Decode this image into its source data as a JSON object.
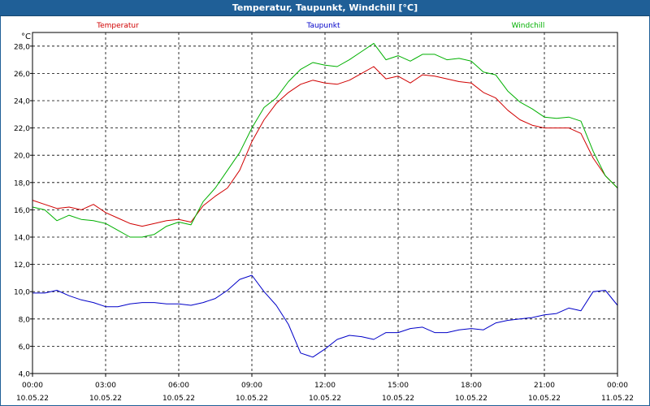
{
  "window": {
    "title": "Temperatur, Taupunkt, Windchill [°C]"
  },
  "colors": {
    "titlebar": "#1f5f97",
    "temperatur": "#d00000",
    "taupunkt": "#0000c8",
    "windchill": "#00b000"
  },
  "chart_data": {
    "type": "line",
    "title": "Temperatur, Taupunkt, Windchill [°C]",
    "ylabel": "°C",
    "ylim": [
      4.0,
      29.0
    ],
    "y_ticks": [
      "4,0",
      "6,0",
      "8,0",
      "10,0",
      "12,0",
      "14,0",
      "16,0",
      "18,0",
      "20,0",
      "22,0",
      "24,0",
      "26,0",
      "28,0"
    ],
    "y_tick_values": [
      4,
      6,
      8,
      10,
      12,
      14,
      16,
      18,
      20,
      22,
      24,
      26,
      28
    ],
    "xlim": [
      0,
      24
    ],
    "x_tick_hours": [
      0,
      3,
      6,
      9,
      12,
      15,
      18,
      21,
      24
    ],
    "x_ticks_time": [
      "00:00",
      "03:00",
      "06:00",
      "09:00",
      "12:00",
      "15:00",
      "18:00",
      "21:00",
      "00:00"
    ],
    "x_ticks_date": [
      "10.05.22",
      "10.05.22",
      "10.05.22",
      "10.05.22",
      "10.05.22",
      "10.05.22",
      "10.05.22",
      "10.05.22",
      "11.05.22"
    ],
    "grid": true,
    "legend_position": "top",
    "series": [
      {
        "name": "Temperatur",
        "color": "#d00000",
        "x": [
          0,
          0.5,
          1,
          1.5,
          2,
          2.5,
          3,
          3.5,
          4,
          4.5,
          5,
          5.5,
          6,
          6.5,
          7,
          7.5,
          8,
          8.5,
          9,
          9.5,
          10,
          10.5,
          11,
          11.5,
          12,
          12.5,
          13,
          13.5,
          14,
          14.5,
          15,
          15.5,
          16,
          16.5,
          17,
          17.5,
          18,
          18.5,
          19,
          19.5,
          20,
          20.5,
          21,
          21.5,
          22,
          22.5,
          23,
          23.5,
          24
        ],
        "y": [
          16.7,
          16.4,
          16.1,
          16.2,
          16.0,
          16.4,
          15.8,
          15.4,
          15.0,
          14.8,
          15.0,
          15.2,
          15.3,
          15.1,
          16.3,
          17.0,
          17.6,
          18.9,
          21.0,
          22.6,
          23.8,
          24.6,
          25.2,
          25.5,
          25.3,
          25.2,
          25.5,
          26.0,
          26.5,
          25.6,
          25.8,
          25.3,
          25.9,
          25.8,
          25.6,
          25.4,
          25.3,
          24.6,
          24.2,
          23.3,
          22.6,
          22.2,
          22.0,
          22.0,
          22.0,
          21.6,
          19.8,
          18.5,
          17.6
        ]
      },
      {
        "name": "Taupunkt",
        "color": "#0000c8",
        "x": [
          0,
          0.5,
          1,
          1.5,
          2,
          2.5,
          3,
          3.5,
          4,
          4.5,
          5,
          5.5,
          6,
          6.5,
          7,
          7.5,
          8,
          8.5,
          9,
          9.5,
          10,
          10.5,
          11,
          11.5,
          12,
          12.5,
          13,
          13.5,
          14,
          14.5,
          15,
          15.5,
          16,
          16.5,
          17,
          17.5,
          18,
          18.5,
          19,
          19.5,
          20,
          20.5,
          21,
          21.5,
          22,
          22.5,
          23,
          23.5,
          24
        ],
        "y": [
          9.9,
          9.9,
          10.1,
          9.7,
          9.4,
          9.2,
          8.9,
          8.9,
          9.1,
          9.2,
          9.2,
          9.1,
          9.1,
          9.0,
          9.2,
          9.5,
          10.1,
          10.9,
          11.2,
          10.0,
          9.0,
          7.6,
          5.5,
          5.2,
          5.8,
          6.5,
          6.8,
          6.7,
          6.5,
          7.0,
          7.0,
          7.3,
          7.4,
          7.0,
          7.0,
          7.2,
          7.3,
          7.2,
          7.7,
          7.9,
          8.0,
          8.1,
          8.3,
          8.4,
          8.8,
          8.6,
          10.0,
          10.1,
          9.0
        ]
      },
      {
        "name": "Windchill",
        "color": "#00b000",
        "x": [
          0,
          0.5,
          1,
          1.5,
          2,
          2.5,
          3,
          3.5,
          4,
          4.5,
          5,
          5.5,
          6,
          6.5,
          7,
          7.5,
          8,
          8.5,
          9,
          9.5,
          10,
          10.5,
          11,
          11.5,
          12,
          12.5,
          13,
          13.5,
          14,
          14.5,
          15,
          15.5,
          16,
          16.5,
          17,
          17.5,
          18,
          18.5,
          19,
          19.5,
          20,
          20.5,
          21,
          21.5,
          22,
          22.5,
          23,
          23.5,
          24
        ],
        "y": [
          16.2,
          16.0,
          15.2,
          15.6,
          15.3,
          15.2,
          15.0,
          14.5,
          14.0,
          14.0,
          14.2,
          14.8,
          15.1,
          14.9,
          16.6,
          17.6,
          18.9,
          20.2,
          22.0,
          23.5,
          24.2,
          25.4,
          26.3,
          26.8,
          26.6,
          26.5,
          27.0,
          27.6,
          28.2,
          27.0,
          27.3,
          26.9,
          27.4,
          27.4,
          27.0,
          27.1,
          26.9,
          26.1,
          25.9,
          24.7,
          23.9,
          23.4,
          22.8,
          22.7,
          22.8,
          22.5,
          20.3,
          18.5,
          17.6
        ]
      }
    ]
  }
}
